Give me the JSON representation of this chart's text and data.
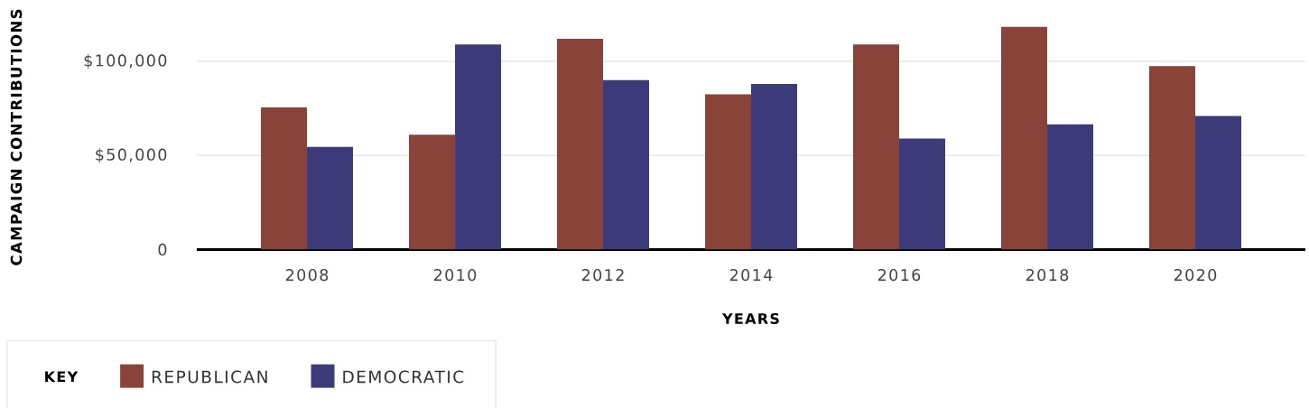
{
  "chart_data": {
    "type": "bar",
    "xlabel": "YEARS",
    "ylabel": "CAMPAIGN CONTRIBUTIONS",
    "legend_title": "KEY",
    "categories": [
      "2008",
      "2010",
      "2012",
      "2014",
      "2016",
      "2018",
      "2020"
    ],
    "series": [
      {
        "name": "REPUBLICAN",
        "color": "#8a4339",
        "values": [
          75500,
          61000,
          112000,
          82500,
          109000,
          118500,
          97500
        ]
      },
      {
        "name": "DEMOCRATIC",
        "color": "#3d3a7a",
        "values": [
          54500,
          109000,
          90000,
          88000,
          59000,
          66500,
          71000
        ]
      }
    ],
    "ylim": [
      0,
      118500
    ],
    "yticks": [
      0,
      {
        "value": 50000,
        "label": "$50,000"
      },
      {
        "value": 100000,
        "label": "$100,000"
      }
    ],
    "grid": "y",
    "legend": "bottom left"
  }
}
